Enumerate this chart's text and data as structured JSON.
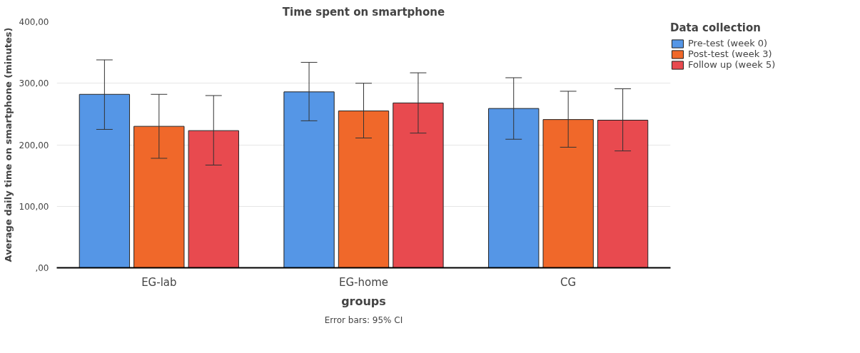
{
  "chart_data": {
    "type": "bar",
    "title": "Time spent on smartphone",
    "xlabel": "groups",
    "ylabel": "Average daily time on smartphone (minutes)",
    "legend_title": "Data collection",
    "categories": [
      "EG-lab",
      "EG-home",
      "CG"
    ],
    "series": [
      {
        "name": "Pre-test (week 0)",
        "color": "#5596e6",
        "values": [
          282,
          286,
          259
        ],
        "errors": [
          [
            225,
            338
          ],
          [
            239,
            334
          ],
          [
            209,
            309
          ]
        ]
      },
      {
        "name": "Post-test (week 3)",
        "color": "#f0682a",
        "values": [
          230,
          255,
          241
        ],
        "errors": [
          [
            178,
            282
          ],
          [
            211,
            300
          ],
          [
            196,
            287
          ]
        ]
      },
      {
        "name": "Follow up (week 5)",
        "color": "#e84a4f",
        "values": [
          223,
          268,
          240
        ],
        "errors": [
          [
            167,
            280
          ],
          [
            219,
            317
          ],
          [
            190,
            291
          ]
        ]
      }
    ],
    "ylim": [
      0,
      400
    ],
    "yticks": [
      {
        "value": 0,
        "label": ",00"
      },
      {
        "value": 100,
        "label": "100,00"
      },
      {
        "value": 200,
        "label": "200,00"
      },
      {
        "value": 300,
        "label": "300,00"
      },
      {
        "value": 400,
        "label": "400,00"
      }
    ],
    "grid": "y",
    "legend": "top right",
    "annotations": [
      "Error bars: 95% CI"
    ]
  }
}
